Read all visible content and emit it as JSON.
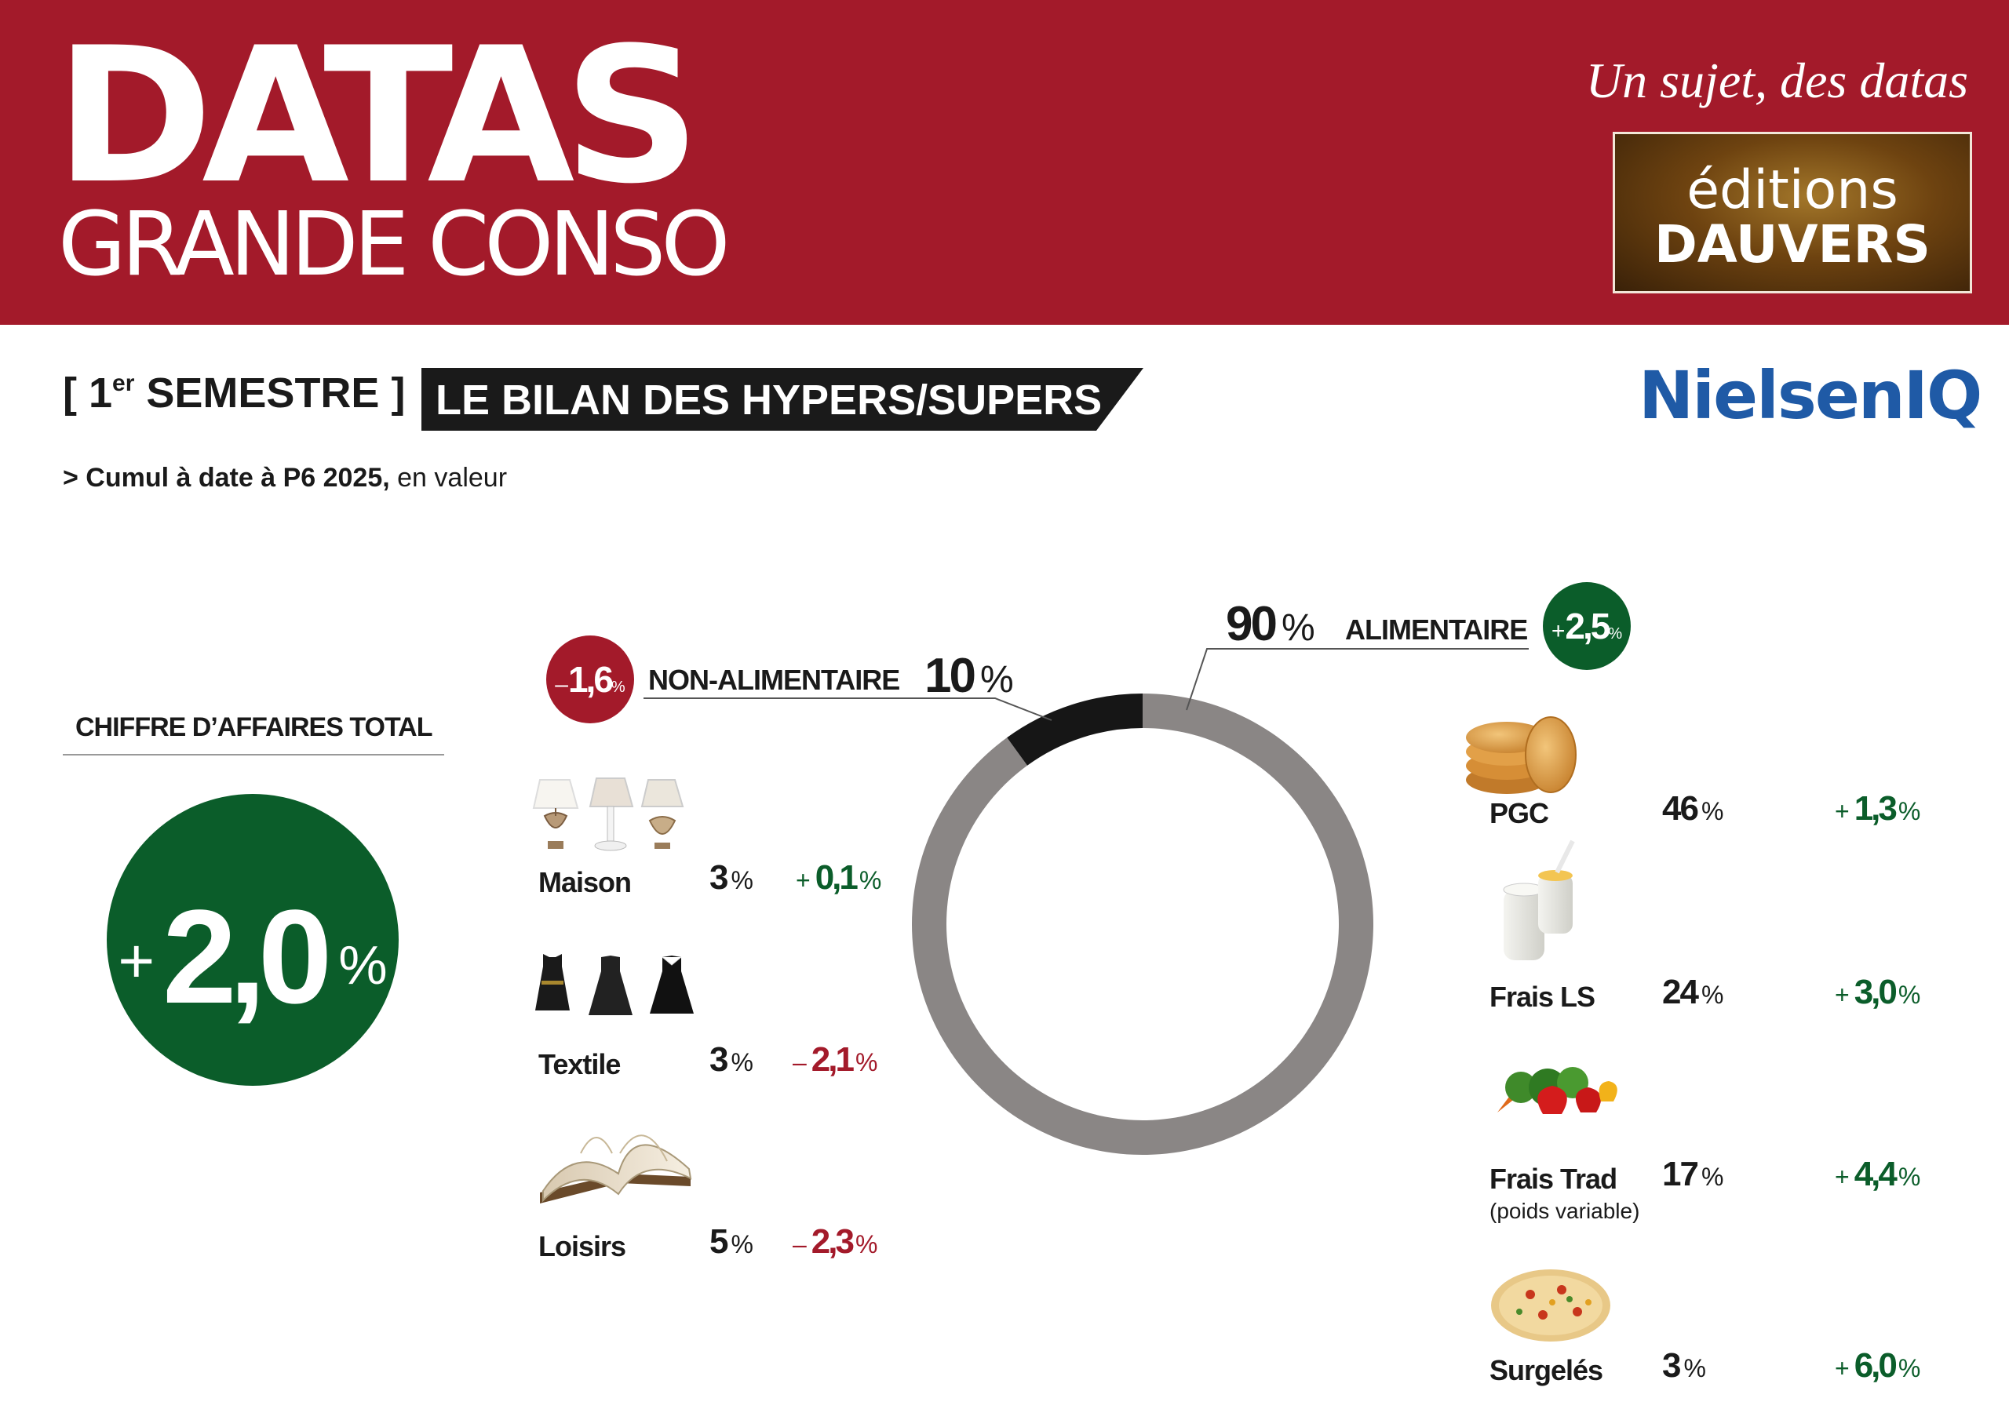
{
  "header": {
    "title": "DATAS",
    "subtitle": "GRANDE CONSO",
    "tagline": "Un sujet, des datas",
    "publisher_line1": "éditions",
    "publisher_line2": "DAUVERS"
  },
  "subheader": {
    "semester_bracket_open": "[ 1",
    "semester_sup": "er",
    "semester_rest": " SEMESTRE ]",
    "banner": "LE BILAN DES HYPERS/SUPERS",
    "source_logo": "NielsenIQ",
    "note_bold": "> Cumul à date à P6 2025,",
    "note_rest": " en valeur"
  },
  "total": {
    "label": "CHIFFRE D’AFFAIRES TOTAL",
    "sign": "+",
    "value": "2,0",
    "unit": "%"
  },
  "chart_data": {
    "type": "pie",
    "style": "donut",
    "slices": [
      {
        "name": "ALIMENTAIRE",
        "share": 90,
        "share_label": "90",
        "evolution_sign": "+",
        "evolution": "2,5",
        "color": "#8a8685"
      },
      {
        "name": "NON-ALIMENTAIRE",
        "share": 10,
        "share_label": "10",
        "evolution_sign": "–",
        "evolution": "1,6",
        "color": "#161616"
      }
    ],
    "unit": "%",
    "non_food_items": [
      {
        "name": "Maison",
        "icon": "lamp-icon",
        "share": "3",
        "sign": "+",
        "evolution": "0,1",
        "trend": "up"
      },
      {
        "name": "Textile",
        "icon": "dress-icon",
        "share": "3",
        "sign": "–",
        "evolution": "2,1",
        "trend": "down"
      },
      {
        "name": "Loisirs",
        "icon": "book-icon",
        "share": "5",
        "sign": "–",
        "evolution": "2,3",
        "trend": "down"
      }
    ],
    "food_items": [
      {
        "name": "PGC",
        "sub": "",
        "icon": "biscuit-icon",
        "share": "46",
        "sign": "+",
        "evolution": "1,3",
        "trend": "up"
      },
      {
        "name": "Frais LS",
        "sub": "",
        "icon": "yogurt-icon",
        "share": "24",
        "sign": "+",
        "evolution": "3,0",
        "trend": "up"
      },
      {
        "name": "Frais Trad",
        "sub": "(poids variable)",
        "icon": "vegetables-icon",
        "share": "17",
        "sign": "+",
        "evolution": "4,4",
        "trend": "up"
      },
      {
        "name": "Surgelés",
        "sub": "",
        "icon": "pizza-icon",
        "share": "3",
        "sign": "+",
        "evolution": "6,0",
        "trend": "up"
      }
    ]
  },
  "colors": {
    "brand_red": "#a31a2a",
    "positive_green": "#0b5d2a",
    "food_gray": "#8a8685",
    "nonfood_black": "#161616",
    "nielsen_blue": "#1f5aa6"
  }
}
